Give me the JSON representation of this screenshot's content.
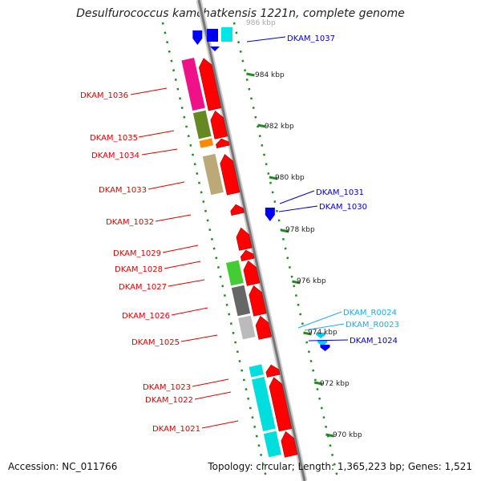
{
  "title": "Desulfurococcus kamchatkensis 1221n, complete genome",
  "footer": {
    "accession": "Accession: NC_011766",
    "topology": "Topology: circular; Length: 1,365,223 bp; Genes: 1,521"
  },
  "colors": {
    "forward_strand_arrow": "#ff0000",
    "reverse_strand_arrow": "#0000ff",
    "rna_arrow": "#00ccff",
    "backbone": "#888888",
    "tick": "#228b22",
    "forward_label": "#dd0000",
    "reverse_label": "#0000cc",
    "rna_label": "#22aaee"
  },
  "scale_labels": [
    {
      "label": "986 kbp"
    },
    {
      "label": "984 kbp"
    },
    {
      "label": "982 kbp"
    },
    {
      "label": "980 kbp"
    },
    {
      "label": "978 kbp"
    },
    {
      "label": "976 kbp"
    },
    {
      "label": "974 kbp"
    },
    {
      "label": "972 kbp"
    },
    {
      "label": "970 kbp"
    }
  ],
  "forward_genes": [
    {
      "label": "DKAM_1036",
      "cog_color": "#ee1188"
    },
    {
      "label": "DKAM_1035",
      "cog_color": "#668822"
    },
    {
      "label": "DKAM_1034",
      "cog_color": "#ff8800"
    },
    {
      "label": "DKAM_1033",
      "cog_color": "#bbaa77"
    },
    {
      "label": "DKAM_1032",
      "cog_color": ""
    },
    {
      "label": "DKAM_1029",
      "cog_color": ""
    },
    {
      "label": "DKAM_1028",
      "cog_color": ""
    },
    {
      "label": "DKAM_1027",
      "cog_color": "#44cc33"
    },
    {
      "label": "DKAM_1026",
      "cog_color": "#666666"
    },
    {
      "label": "DKAM_1025",
      "cog_color": "#bbbbbb"
    },
    {
      "label": "DKAM_1023",
      "cog_color": "#00dddd"
    },
    {
      "label": "DKAM_1022",
      "cog_color": "#00dddd"
    },
    {
      "label": "DKAM_1021",
      "cog_color": "#00dddd"
    }
  ],
  "reverse_genes": [
    {
      "label": "DKAM_1037",
      "color": "#0000ff"
    },
    {
      "label": "DKAM_1031",
      "color": "#0000ff"
    },
    {
      "label": "DKAM_1030",
      "color": "#0000ff"
    },
    {
      "label": "DKAM_R0024",
      "color": "#00ccff"
    },
    {
      "label": "DKAM_R0023",
      "color": "#00ccff"
    },
    {
      "label": "DKAM_1024",
      "color": "#0000ff"
    }
  ]
}
